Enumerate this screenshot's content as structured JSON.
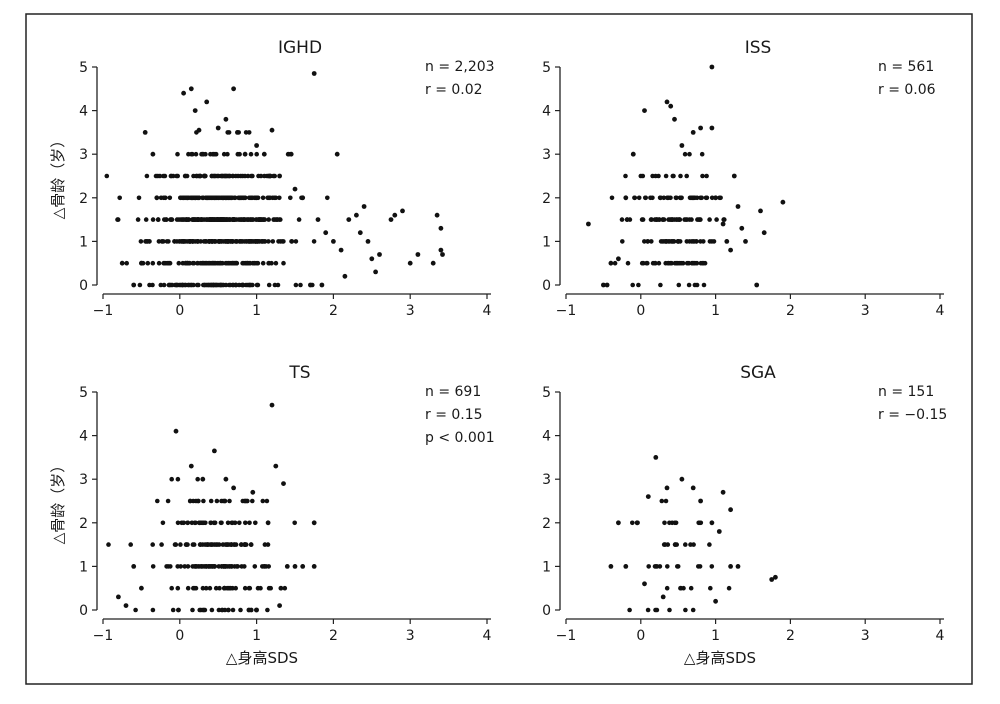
{
  "figure": {
    "frame_color": "#222222",
    "point_color": "#111111"
  },
  "chart_data": [
    {
      "type": "scatter",
      "title": "IGHD",
      "xlabel": "",
      "ylabel": "△骨龄（岁）",
      "xlim": [
        -1,
        4
      ],
      "ylim": [
        0,
        5
      ],
      "xticks": [
        "-1",
        "0",
        "1",
        "2",
        "3",
        "4"
      ],
      "yticks": [
        "0",
        "1",
        "2",
        "3",
        "4",
        "5"
      ],
      "annotations": [
        "n = 2,203",
        "r = 0.02"
      ],
      "cluster": {
        "center_x": 0.5,
        "spread_x": 0.45,
        "center_y": 1.3,
        "spread_y": 0.85
      },
      "points": [
        [
          -0.75,
          0.5
        ],
        [
          -0.6,
          0.0
        ],
        [
          -0.5,
          0.5
        ],
        [
          -0.45,
          3.5
        ],
        [
          -0.35,
          3.0
        ],
        [
          -0.3,
          2.0
        ],
        [
          -0.2,
          1.5
        ],
        [
          0.05,
          4.4
        ],
        [
          0.15,
          4.5
        ],
        [
          0.2,
          4.0
        ],
        [
          0.25,
          3.55
        ],
        [
          0.35,
          4.2
        ],
        [
          0.5,
          3.6
        ],
        [
          0.6,
          3.8
        ],
        [
          0.7,
          4.5
        ],
        [
          0.75,
          3.5
        ],
        [
          0.85,
          3.0
        ],
        [
          1.0,
          3.2
        ],
        [
          1.1,
          3.0
        ],
        [
          1.2,
          3.55
        ],
        [
          1.3,
          2.5
        ],
        [
          1.45,
          3.0
        ],
        [
          1.5,
          2.2
        ],
        [
          1.6,
          2.0
        ],
        [
          1.75,
          4.85
        ],
        [
          1.8,
          1.5
        ],
        [
          1.9,
          1.2
        ],
        [
          2.0,
          1.0
        ],
        [
          2.05,
          3.0
        ],
        [
          2.1,
          0.8
        ],
        [
          2.15,
          0.2
        ],
        [
          2.2,
          1.5
        ],
        [
          2.3,
          1.6
        ],
        [
          2.35,
          1.2
        ],
        [
          2.4,
          1.8
        ],
        [
          2.45,
          1.0
        ],
        [
          2.5,
          0.6
        ],
        [
          2.55,
          0.3
        ],
        [
          2.6,
          0.7
        ],
        [
          2.75,
          1.5
        ],
        [
          2.8,
          1.6
        ],
        [
          2.9,
          1.7
        ],
        [
          3.0,
          0.5
        ],
        [
          3.1,
          0.7
        ],
        [
          3.3,
          0.5
        ],
        [
          3.35,
          1.6
        ],
        [
          3.4,
          1.3
        ],
        [
          3.4,
          0.8
        ],
        [
          3.42,
          0.7
        ],
        [
          1.7,
          0.0
        ],
        [
          1.85,
          0.0
        ]
      ]
    },
    {
      "type": "scatter",
      "title": "ISS",
      "xlabel": "",
      "ylabel": "",
      "xlim": [
        -1,
        4
      ],
      "ylim": [
        0,
        5
      ],
      "xticks": [
        "-1",
        "0",
        "1",
        "2",
        "3",
        "4"
      ],
      "yticks": [
        "0",
        "1",
        "2",
        "3",
        "4",
        "5"
      ],
      "annotations": [
        "n = 561",
        "r = 0.06"
      ],
      "cluster": {
        "center_x": 0.4,
        "spread_x": 0.3,
        "center_y": 1.4,
        "spread_y": 0.75
      },
      "points": [
        [
          -0.7,
          1.4
        ],
        [
          -0.5,
          0.0
        ],
        [
          -0.45,
          0.0
        ],
        [
          -0.4,
          0.5
        ],
        [
          -0.3,
          0.6
        ],
        [
          -0.2,
          2.0
        ],
        [
          -0.1,
          3.0
        ],
        [
          0.05,
          4.0
        ],
        [
          0.35,
          4.2
        ],
        [
          0.4,
          4.1
        ],
        [
          0.45,
          3.8
        ],
        [
          0.55,
          3.2
        ],
        [
          0.7,
          3.5
        ],
        [
          0.8,
          3.6
        ],
        [
          0.95,
          5.0
        ],
        [
          0.95,
          3.6
        ],
        [
          1.0,
          2.0
        ],
        [
          1.1,
          1.4
        ],
        [
          1.15,
          1.0
        ],
        [
          1.25,
          2.5
        ],
        [
          1.3,
          1.8
        ],
        [
          1.35,
          1.3
        ],
        [
          1.4,
          1.0
        ],
        [
          1.6,
          1.7
        ],
        [
          1.65,
          1.2
        ],
        [
          1.9,
          1.9
        ],
        [
          1.55,
          0.0
        ],
        [
          1.2,
          0.8
        ]
      ]
    },
    {
      "type": "scatter",
      "title": "TS",
      "xlabel": "△身高SDS",
      "ylabel": "△骨龄（岁）",
      "xlim": [
        -1,
        4
      ],
      "ylim": [
        0,
        5
      ],
      "xticks": [
        "-1",
        "0",
        "1",
        "2",
        "3",
        "4"
      ],
      "yticks": [
        "0",
        "1",
        "2",
        "3",
        "4",
        "5"
      ],
      "annotations": [
        "n = 691",
        "r = 0.15",
        "p < 0.001"
      ],
      "cluster": {
        "center_x": 0.5,
        "spread_x": 0.38,
        "center_y": 1.2,
        "spread_y": 0.75
      },
      "points": [
        [
          -0.8,
          0.3
        ],
        [
          -0.7,
          0.1
        ],
        [
          -0.6,
          1.0
        ],
        [
          -0.5,
          0.5
        ],
        [
          -0.05,
          4.1
        ],
        [
          0.15,
          3.3
        ],
        [
          0.3,
          3.0
        ],
        [
          0.45,
          3.65
        ],
        [
          0.6,
          3.0
        ],
        [
          0.7,
          2.8
        ],
        [
          0.85,
          2.5
        ],
        [
          0.95,
          2.7
        ],
        [
          1.1,
          1.0
        ],
        [
          1.2,
          4.7
        ],
        [
          1.25,
          3.3
        ],
        [
          1.35,
          2.9
        ],
        [
          1.4,
          1.0
        ],
        [
          1.5,
          1.0
        ],
        [
          1.6,
          1.0
        ],
        [
          1.75,
          2.0
        ],
        [
          1.75,
          1.0
        ],
        [
          1.3,
          0.1
        ],
        [
          1.0,
          0.0
        ],
        [
          1.15,
          2.0
        ],
        [
          0.9,
          0.0
        ]
      ]
    },
    {
      "type": "scatter",
      "title": "SGA",
      "xlabel": "△身高SDS",
      "ylabel": "",
      "xlim": [
        -1,
        4
      ],
      "ylim": [
        0,
        5
      ],
      "xticks": [
        "-1",
        "0",
        "1",
        "2",
        "3",
        "4"
      ],
      "yticks": [
        "0",
        "1",
        "2",
        "3",
        "4",
        "5"
      ],
      "annotations": [
        "n = 151",
        "r = −0.15"
      ],
      "cluster": {
        "center_x": 0.45,
        "spread_x": 0.28,
        "center_y": 1.2,
        "spread_y": 0.6
      },
      "points": [
        [
          -0.4,
          1.0
        ],
        [
          -0.3,
          2.0
        ],
        [
          -0.2,
          1.0
        ],
        [
          -0.05,
          2.0
        ],
        [
          0.1,
          2.6
        ],
        [
          0.2,
          3.5
        ],
        [
          0.35,
          2.8
        ],
        [
          0.55,
          3.0
        ],
        [
          0.7,
          2.8
        ],
        [
          0.8,
          2.5
        ],
        [
          0.95,
          2.0
        ],
        [
          1.0,
          0.2
        ],
        [
          1.05,
          1.8
        ],
        [
          1.1,
          2.7
        ],
        [
          1.2,
          2.3
        ],
        [
          1.2,
          1.0
        ],
        [
          1.3,
          1.0
        ],
        [
          1.75,
          0.7
        ],
        [
          1.8,
          0.75
        ],
        [
          0.05,
          0.6
        ],
        [
          0.3,
          0.3
        ]
      ]
    }
  ]
}
